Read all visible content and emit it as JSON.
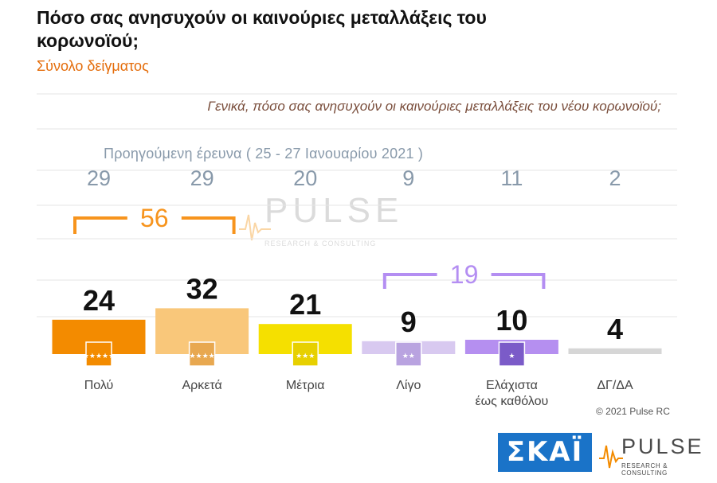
{
  "header": {
    "title": "Πόσο σας ανησυχούν οι καινούριες μεταλλάξεις του κορωνοϊού;",
    "subtitle": "Σύνολο δείγματος"
  },
  "question": "Γενικά, πόσο σας ανησυχούν οι καινούριες μεταλλάξεις του νέου κορωνοϊού;",
  "previous_survey_caption": "Προηγούμενη έρευνα  ( 25 - 27  Ιανουαρίου  2021 )",
  "footer": {
    "copyright": "© 2021 Pulse RC",
    "skai_logo": "ΣΚΑΪ",
    "pulse_logo": "PULSE",
    "pulse_tagline": "RESEARCH & CONSULTING"
  },
  "watermark": {
    "word": "PULSE",
    "tagline": "RESEARCH & CONSULTING"
  },
  "colors": {
    "bar_colors": [
      "#f38b00",
      "#f9c77a",
      "#f5e000",
      "#d8c9f0",
      "#b58ff0",
      "#d6d6d6"
    ],
    "icon_colors": [
      "#f38b00",
      "#e8a850",
      "#e7d000",
      "#b9a3e0",
      "#7b5bc8",
      null
    ],
    "group_high": "#f7941d",
    "group_low": "#b48ef2",
    "value_color": "#111111",
    "previous_color": "#8899aa",
    "gridline": "#e6e6e6"
  },
  "chart_data": {
    "type": "bar",
    "categories": [
      "Πολύ",
      "Αρκετά",
      "Μέτρια",
      "Λίγο",
      "Ελάχιστα\nέως καθόλου",
      "ΔΓ/ΔΑ"
    ],
    "series": [
      {
        "values": [
          24,
          32,
          21,
          9,
          10,
          4
        ]
      }
    ],
    "previous_values": [
      29,
      29,
      20,
      9,
      11,
      2
    ],
    "groupings": [
      {
        "label": "56",
        "from": 0,
        "to": 1,
        "color": "#f7941d"
      },
      {
        "label": "19",
        "from": 3,
        "to": 4,
        "color": "#b48ef2"
      }
    ],
    "icons": [
      "five-stars-icon",
      "four-stars-icon",
      "three-stars-icon",
      "two-stars-icon",
      "one-star-icon",
      null
    ],
    "ylim": [
      0,
      40
    ],
    "grid": true,
    "legend": "none"
  }
}
